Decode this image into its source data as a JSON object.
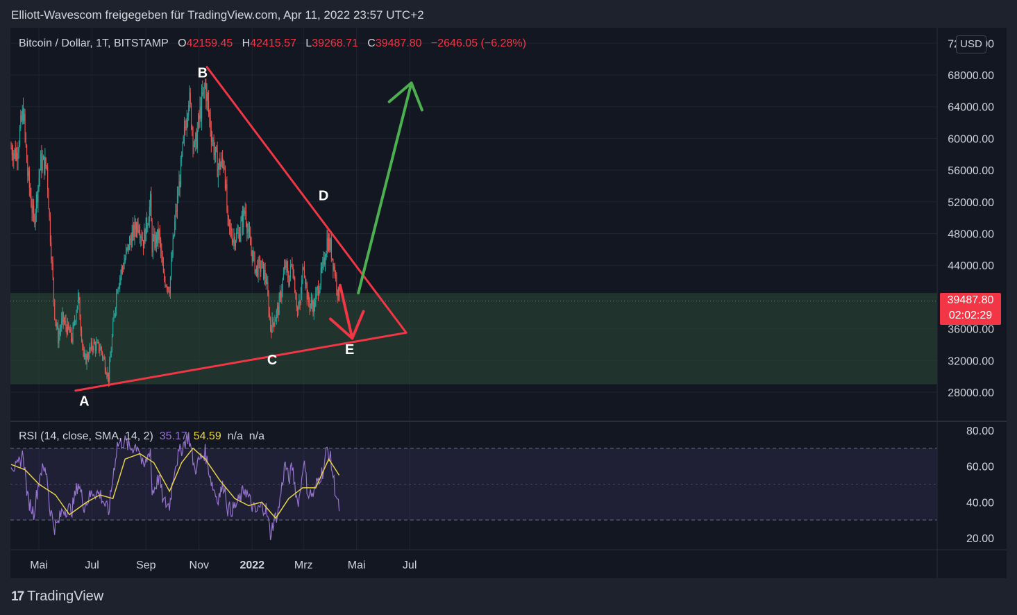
{
  "header": {
    "text": "Elliott-Wavescom freigegeben für TradingView.com, Apr 11, 2022 23:57 UTC+2"
  },
  "legend": {
    "symbol": "Bitcoin / Dollar, 1T, BITSTAMP",
    "open_label": "O",
    "open": "42159.45",
    "high_label": "H",
    "high": "42415.57",
    "low_label": "L",
    "low": "39268.71",
    "close_label": "C",
    "close": "39487.80",
    "change": "−2646.05 (−6.28%)"
  },
  "rsi_legend": {
    "label": "RSI (14, close, SMA, 14, 2)",
    "rsi": "35.17",
    "sma": "54.59",
    "na1": "n/a",
    "na2": "n/a"
  },
  "currency_button": "USD",
  "last_price": {
    "price": "39487.80",
    "countdown": "02:02:29"
  },
  "footer": {
    "logo": "17",
    "brand": "TradingView"
  },
  "colors": {
    "up": "#26a69a",
    "down": "#ef5350",
    "trend": "#f23645",
    "target": "#4caf50",
    "rsi": "#9575cd",
    "rsi_sma": "#e6d24a",
    "zone": "#2b4a37"
  },
  "chart_data": [
    {
      "type": "candlestick",
      "title": "Bitcoin / Dollar, 1T, BITSTAMP",
      "x_tick_labels": [
        "Mai",
        "Jul",
        "Sep",
        "Nov",
        "2022",
        "Mrz",
        "Mai",
        "Jul"
      ],
      "y_tick_labels": [
        "28000.00",
        "32000.00",
        "36000.00",
        "40000.00",
        "44000.00",
        "48000.00",
        "52000.00",
        "56000.00",
        "60000.00",
        "64000.00",
        "68000.00",
        "72000.00"
      ],
      "ylim": [
        26000,
        74500
      ],
      "close_series": [
        {
          "d": "2021-03-30",
          "c": 58800
        },
        {
          "d": "2021-04-05",
          "c": 58000
        },
        {
          "d": "2021-04-13",
          "c": 63500
        },
        {
          "d": "2021-04-18",
          "c": 55500
        },
        {
          "d": "2021-04-25",
          "c": 49500
        },
        {
          "d": "2021-05-03",
          "c": 57000
        },
        {
          "d": "2021-05-10",
          "c": 56500
        },
        {
          "d": "2021-05-13",
          "c": 49800
        },
        {
          "d": "2021-05-19",
          "c": 38000
        },
        {
          "d": "2021-05-23",
          "c": 34800
        },
        {
          "d": "2021-05-28",
          "c": 37200
        },
        {
          "d": "2021-06-08",
          "c": 34800
        },
        {
          "d": "2021-06-15",
          "c": 40000
        },
        {
          "d": "2021-06-22",
          "c": 31800
        },
        {
          "d": "2021-07-02",
          "c": 34000
        },
        {
          "d": "2021-07-11",
          "c": 33500
        },
        {
          "d": "2021-07-20",
          "c": 29800
        },
        {
          "d": "2021-07-26",
          "c": 37300
        },
        {
          "d": "2021-07-30",
          "c": 41500
        },
        {
          "d": "2021-08-07",
          "c": 44500
        },
        {
          "d": "2021-08-14",
          "c": 47200
        },
        {
          "d": "2021-08-23",
          "c": 49500
        },
        {
          "d": "2021-08-29",
          "c": 47000
        },
        {
          "d": "2021-09-06",
          "c": 51800
        },
        {
          "d": "2021-09-08",
          "c": 46500
        },
        {
          "d": "2021-09-16",
          "c": 47800
        },
        {
          "d": "2021-09-21",
          "c": 42500
        },
        {
          "d": "2021-09-28",
          "c": 41200
        },
        {
          "d": "2021-10-04",
          "c": 49200
        },
        {
          "d": "2021-10-10",
          "c": 55000
        },
        {
          "d": "2021-10-16",
          "c": 61500
        },
        {
          "d": "2021-10-20",
          "c": 65500
        },
        {
          "d": "2021-10-27",
          "c": 58500
        },
        {
          "d": "2021-11-02",
          "c": 63200
        },
        {
          "d": "2021-11-08",
          "c": 66800
        },
        {
          "d": "2021-11-10",
          "c": 65000
        },
        {
          "d": "2021-11-16",
          "c": 60000
        },
        {
          "d": "2021-11-22",
          "c": 56500
        },
        {
          "d": "2021-11-30",
          "c": 57000
        },
        {
          "d": "2021-12-04",
          "c": 49000
        },
        {
          "d": "2021-12-10",
          "c": 47500
        },
        {
          "d": "2021-12-16",
          "c": 47800
        },
        {
          "d": "2021-12-24",
          "c": 51000
        },
        {
          "d": "2021-12-28",
          "c": 47500
        },
        {
          "d": "2022-01-05",
          "c": 43500
        },
        {
          "d": "2022-01-12",
          "c": 43800
        },
        {
          "d": "2022-01-17",
          "c": 42200
        },
        {
          "d": "2022-01-22",
          "c": 36200
        },
        {
          "d": "2022-01-25",
          "c": 36800
        },
        {
          "d": "2022-01-31",
          "c": 38500
        },
        {
          "d": "2022-02-08",
          "c": 44000
        },
        {
          "d": "2022-02-12",
          "c": 42200
        },
        {
          "d": "2022-02-16",
          "c": 44500
        },
        {
          "d": "2022-02-22",
          "c": 38300
        },
        {
          "d": "2022-02-25",
          "c": 39000
        },
        {
          "d": "2022-03-01",
          "c": 44500
        },
        {
          "d": "2022-03-06",
          "c": 39400
        },
        {
          "d": "2022-03-13",
          "c": 38800
        },
        {
          "d": "2022-03-17",
          "c": 40800
        },
        {
          "d": "2022-03-24",
          "c": 44000
        },
        {
          "d": "2022-03-28",
          "c": 47200
        },
        {
          "d": "2022-04-01",
          "c": 46300
        },
        {
          "d": "2022-04-06",
          "c": 43200
        },
        {
          "d": "2022-04-11",
          "c": 39488
        }
      ],
      "support_zone": [
        29000,
        40500
      ],
      "last_price_line": 39487.8,
      "trendline_upper": [
        {
          "d": "2021-11-10",
          "v": 69000
        },
        {
          "d": "2022-06-27",
          "v": 35500
        }
      ],
      "trendline_lower": [
        {
          "d": "2021-06-12",
          "v": 28200
        },
        {
          "d": "2022-06-27",
          "v": 35500
        }
      ],
      "arrow_down": [
        {
          "d": "2022-04-12",
          "v": 41500
        },
        {
          "d": "2022-04-26",
          "v": 34800
        }
      ],
      "arrow_up": [
        {
          "d": "2022-05-03",
          "v": 40500
        },
        {
          "d": "2022-07-03",
          "v": 67000
        }
      ],
      "wave_labels": [
        {
          "text": "A",
          "d": "2021-06-22",
          "v": 26300
        },
        {
          "text": "B",
          "d": "2021-11-05",
          "v": 67700
        },
        {
          "text": "C",
          "d": "2022-01-24",
          "v": 31500
        },
        {
          "text": "D",
          "d": "2022-03-24",
          "v": 52200
        },
        {
          "text": "E",
          "d": "2022-04-23",
          "v": 32800
        }
      ]
    },
    {
      "type": "line",
      "title": "RSI (14, close, SMA, 14, 2)",
      "y_tick_labels": [
        "20.00",
        "40.00",
        "60.00",
        "80.00"
      ],
      "ylim": [
        16,
        82
      ],
      "bands": [
        30,
        50,
        70
      ],
      "rsi_series": [
        {
          "d": "2021-03-30",
          "v": 62
        },
        {
          "d": "2021-04-05",
          "v": 58
        },
        {
          "d": "2021-04-13",
          "v": 67
        },
        {
          "d": "2021-04-18",
          "v": 42
        },
        {
          "d": "2021-04-25",
          "v": 34
        },
        {
          "d": "2021-05-03",
          "v": 58
        },
        {
          "d": "2021-05-10",
          "v": 57
        },
        {
          "d": "2021-05-13",
          "v": 38
        },
        {
          "d": "2021-05-19",
          "v": 26
        },
        {
          "d": "2021-05-23",
          "v": 28
        },
        {
          "d": "2021-05-28",
          "v": 36
        },
        {
          "d": "2021-06-08",
          "v": 36
        },
        {
          "d": "2021-06-15",
          "v": 51
        },
        {
          "d": "2021-06-22",
          "v": 38
        },
        {
          "d": "2021-07-02",
          "v": 46
        },
        {
          "d": "2021-07-11",
          "v": 44
        },
        {
          "d": "2021-07-20",
          "v": 34
        },
        {
          "d": "2021-07-26",
          "v": 58
        },
        {
          "d": "2021-07-30",
          "v": 72
        },
        {
          "d": "2021-08-07",
          "v": 74
        },
        {
          "d": "2021-08-14",
          "v": 70
        },
        {
          "d": "2021-08-23",
          "v": 72
        },
        {
          "d": "2021-08-29",
          "v": 58
        },
        {
          "d": "2021-09-06",
          "v": 70
        },
        {
          "d": "2021-09-08",
          "v": 45
        },
        {
          "d": "2021-09-16",
          "v": 54
        },
        {
          "d": "2021-09-21",
          "v": 40
        },
        {
          "d": "2021-09-28",
          "v": 38
        },
        {
          "d": "2021-10-04",
          "v": 60
        },
        {
          "d": "2021-10-10",
          "v": 68
        },
        {
          "d": "2021-10-16",
          "v": 74
        },
        {
          "d": "2021-10-20",
          "v": 77
        },
        {
          "d": "2021-10-27",
          "v": 58
        },
        {
          "d": "2021-11-02",
          "v": 64
        },
        {
          "d": "2021-11-08",
          "v": 68
        },
        {
          "d": "2021-11-10",
          "v": 63
        },
        {
          "d": "2021-11-16",
          "v": 50
        },
        {
          "d": "2021-11-22",
          "v": 42
        },
        {
          "d": "2021-11-30",
          "v": 50
        },
        {
          "d": "2021-12-04",
          "v": 36
        },
        {
          "d": "2021-12-10",
          "v": 36
        },
        {
          "d": "2021-12-16",
          "v": 40
        },
        {
          "d": "2021-12-24",
          "v": 48
        },
        {
          "d": "2021-12-28",
          "v": 42
        },
        {
          "d": "2022-01-05",
          "v": 34
        },
        {
          "d": "2022-01-12",
          "v": 38
        },
        {
          "d": "2022-01-17",
          "v": 36
        },
        {
          "d": "2022-01-22",
          "v": 22
        },
        {
          "d": "2022-01-25",
          "v": 28
        },
        {
          "d": "2022-01-31",
          "v": 35
        },
        {
          "d": "2022-02-08",
          "v": 62
        },
        {
          "d": "2022-02-12",
          "v": 52
        },
        {
          "d": "2022-02-16",
          "v": 60
        },
        {
          "d": "2022-02-22",
          "v": 40
        },
        {
          "d": "2022-02-25",
          "v": 44
        },
        {
          "d": "2022-03-01",
          "v": 64
        },
        {
          "d": "2022-03-06",
          "v": 45
        },
        {
          "d": "2022-03-13",
          "v": 44
        },
        {
          "d": "2022-03-17",
          "v": 52
        },
        {
          "d": "2022-03-24",
          "v": 58
        },
        {
          "d": "2022-03-28",
          "v": 70
        },
        {
          "d": "2022-04-01",
          "v": 64
        },
        {
          "d": "2022-04-06",
          "v": 48
        },
        {
          "d": "2022-04-11",
          "v": 35
        }
      ],
      "sma_series": [
        {
          "d": "2021-03-30",
          "v": 61
        },
        {
          "d": "2021-04-15",
          "v": 58
        },
        {
          "d": "2021-05-01",
          "v": 50
        },
        {
          "d": "2021-05-20",
          "v": 44
        },
        {
          "d": "2021-06-05",
          "v": 33
        },
        {
          "d": "2021-06-25",
          "v": 40
        },
        {
          "d": "2021-07-10",
          "v": 44
        },
        {
          "d": "2021-07-25",
          "v": 42
        },
        {
          "d": "2021-08-08",
          "v": 64
        },
        {
          "d": "2021-08-25",
          "v": 67
        },
        {
          "d": "2021-09-10",
          "v": 62
        },
        {
          "d": "2021-09-28",
          "v": 46
        },
        {
          "d": "2021-10-12",
          "v": 62
        },
        {
          "d": "2021-10-25",
          "v": 70
        },
        {
          "d": "2021-11-08",
          "v": 64
        },
        {
          "d": "2021-11-25",
          "v": 52
        },
        {
          "d": "2021-12-12",
          "v": 42
        },
        {
          "d": "2021-12-28",
          "v": 38
        },
        {
          "d": "2022-01-12",
          "v": 40
        },
        {
          "d": "2022-01-28",
          "v": 31
        },
        {
          "d": "2022-02-12",
          "v": 42
        },
        {
          "d": "2022-02-28",
          "v": 48
        },
        {
          "d": "2022-03-15",
          "v": 48
        },
        {
          "d": "2022-03-30",
          "v": 64
        },
        {
          "d": "2022-04-11",
          "v": 55
        }
      ]
    }
  ]
}
